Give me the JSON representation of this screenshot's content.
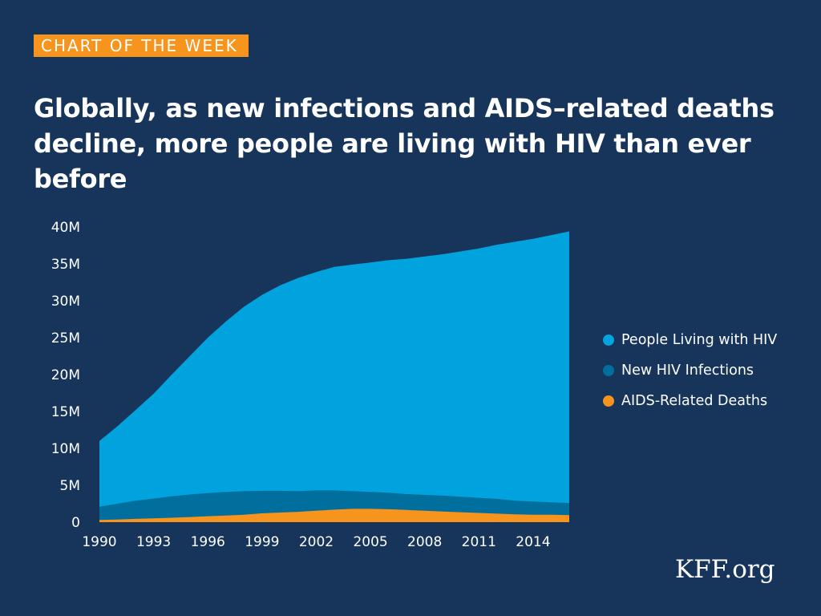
{
  "badge": "CHART OF THE WEEK",
  "title": "Globally, as new infections and AIDS–related deaths decline, more people are living with HIV than ever before",
  "watermark": "KFF.org",
  "colors": {
    "background": "#17355a",
    "badge": "#f7941d",
    "plhiv": "#00a3dd",
    "new_infections": "#006f9e",
    "deaths": "#f7941d",
    "text": "#ffffff"
  },
  "chart_data": {
    "type": "area",
    "title": "",
    "xlabel": "",
    "ylabel": "",
    "x": [
      1990,
      1991,
      1992,
      1993,
      1994,
      1995,
      1996,
      1997,
      1998,
      1999,
      2000,
      2001,
      2002,
      2003,
      2004,
      2005,
      2006,
      2007,
      2008,
      2009,
      2010,
      2011,
      2012,
      2013,
      2014,
      2015,
      2016
    ],
    "xticks": [
      1990,
      1993,
      1996,
      1999,
      2002,
      2005,
      2008,
      2011,
      2014
    ],
    "xtick_labels": [
      "1990",
      "1993",
      "1996",
      "1999",
      "2002",
      "2005",
      "2008",
      "2011",
      "2014"
    ],
    "ylim": [
      0,
      40000000
    ],
    "yticks": [
      0,
      5000000,
      10000000,
      15000000,
      20000000,
      25000000,
      30000000,
      35000000,
      40000000
    ],
    "ytick_labels": [
      "0",
      "5M",
      "10M",
      "15M",
      "20M",
      "25M",
      "30M",
      "35M",
      "40M"
    ],
    "series": [
      {
        "name": "People Living with HIV",
        "color": "#00a3dd",
        "values": [
          11000000,
          13000000,
          15200000,
          17400000,
          20000000,
          22500000,
          25000000,
          27200000,
          29200000,
          30800000,
          32100000,
          33100000,
          33900000,
          34600000,
          34900000,
          35200000,
          35500000,
          35700000,
          36000000,
          36300000,
          36700000,
          37100000,
          37600000,
          38000000,
          38400000,
          38900000,
          39400000
        ]
      },
      {
        "name": "New HIV Infections",
        "color": "#006f9e",
        "values": [
          2100000,
          2500000,
          2900000,
          3200000,
          3500000,
          3750000,
          3950000,
          4100000,
          4200000,
          4250000,
          4250000,
          4200000,
          4300000,
          4300000,
          4200000,
          4100000,
          4000000,
          3800000,
          3700000,
          3600000,
          3450000,
          3300000,
          3150000,
          2900000,
          2800000,
          2700000,
          2600000
        ]
      },
      {
        "name": "AIDS-Related Deaths",
        "color": "#f7941d",
        "values": [
          300000,
          350000,
          450000,
          520000,
          600000,
          700000,
          800000,
          900000,
          1000000,
          1200000,
          1300000,
          1400000,
          1550000,
          1700000,
          1800000,
          1800000,
          1750000,
          1650000,
          1550000,
          1450000,
          1350000,
          1250000,
          1150000,
          1050000,
          1000000,
          1000000,
          950000
        ]
      }
    ],
    "legend_position": "right",
    "grid": false
  }
}
